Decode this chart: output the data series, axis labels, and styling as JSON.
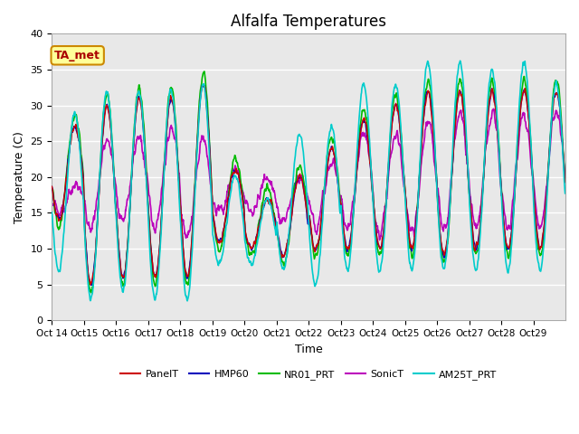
{
  "title": "Alfalfa Temperatures",
  "xlabel": "Time",
  "ylabel": "Temperature (C)",
  "ylim": [
    0,
    40
  ],
  "yticks": [
    0,
    5,
    10,
    15,
    20,
    25,
    30,
    35,
    40
  ],
  "annotation_text": "TA_met",
  "annotation_bg": "#ffff99",
  "annotation_border": "#cc8800",
  "annotation_text_color": "#aa0000",
  "lines": {
    "PanelT": {
      "color": "#cc0000",
      "lw": 1.0
    },
    "HMP60": {
      "color": "#0000bb",
      "lw": 1.0
    },
    "NR01_PRT": {
      "color": "#00bb00",
      "lw": 1.2
    },
    "SonicT": {
      "color": "#bb00bb",
      "lw": 1.2
    },
    "AM25T_PRT": {
      "color": "#00cccc",
      "lw": 1.2
    }
  },
  "xtick_labels": [
    "Oct 14",
    "Oct 15",
    "Oct 16",
    "Oct 17",
    "Oct 18",
    "Oct 19",
    "Oct 20",
    "Oct 21",
    "Oct 22",
    "Oct 23",
    "Oct 24",
    "Oct 25",
    "Oct 26",
    "Oct 27",
    "Oct 28",
    "Oct 29"
  ],
  "n_days": 16,
  "points_per_day": 96,
  "grid_color": "#ffffff",
  "grid_lw": 1.0,
  "day_peaks": [
    27,
    30,
    31,
    31,
    33,
    21,
    17,
    20,
    24,
    28,
    30,
    32,
    32,
    32,
    32,
    32
  ],
  "day_mins": [
    14,
    5,
    6,
    6,
    6,
    11,
    10,
    9,
    10,
    10,
    10,
    10,
    9,
    10,
    10,
    10
  ],
  "sonic_peaks": [
    19,
    25,
    25,
    27,
    25,
    21,
    20,
    20,
    22,
    26,
    26,
    28,
    29,
    29,
    29,
    29
  ],
  "sonic_mins": [
    15,
    13,
    14,
    13,
    12,
    15,
    15,
    14,
    13,
    13,
    12,
    12,
    13,
    13,
    13,
    13
  ],
  "am25_peaks": [
    29,
    32,
    32,
    32,
    33,
    20,
    17,
    26,
    27,
    33,
    33,
    36,
    36,
    35,
    36,
    33
  ],
  "am25_mins": [
    7,
    3,
    4,
    3,
    3,
    8,
    8,
    7,
    5,
    7,
    7,
    7,
    7,
    7,
    7,
    7
  ]
}
